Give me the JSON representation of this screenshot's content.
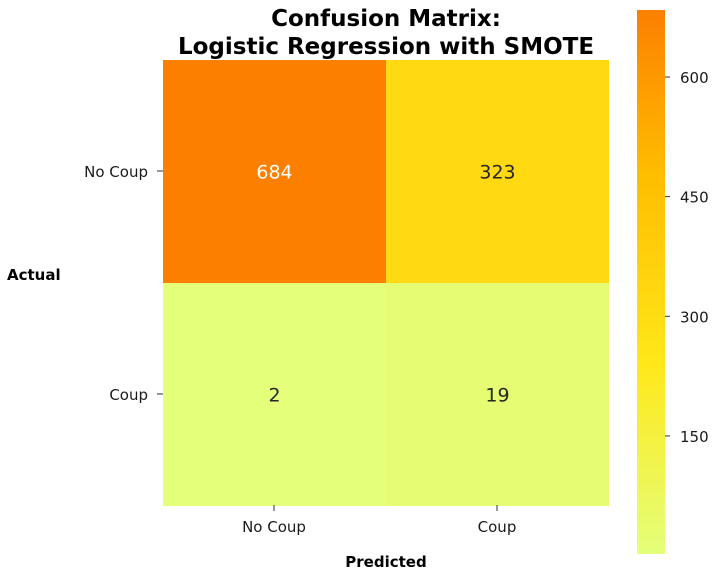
{
  "chart_data": {
    "type": "heatmap",
    "title_lines": [
      "Confusion Matrix:",
      "Logistic Regression with SMOTE"
    ],
    "xlabel": "Predicted",
    "ylabel": "Actual",
    "x_categories": [
      "No Coup",
      "Coup"
    ],
    "y_categories": [
      "No Coup",
      "Coup"
    ],
    "values": [
      [
        684,
        323
      ],
      [
        2,
        19
      ]
    ],
    "colormap": "Wistia",
    "colorbar": {
      "ticks": [
        150,
        300,
        450,
        600
      ],
      "tick_labels": [
        "150",
        "300",
        "450",
        "600"
      ],
      "range": [
        2,
        684
      ]
    },
    "colors": {
      "low": "#e4ff7a",
      "mid_low": "#ffe81a",
      "mid_high": "#ffbd00",
      "high": "#fc7f00"
    }
  }
}
